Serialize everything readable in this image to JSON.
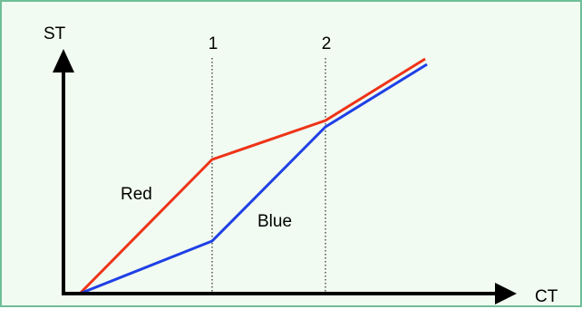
{
  "axes": {
    "y_label": "ST",
    "x_label": "CT"
  },
  "markers": [
    {
      "label": "1"
    },
    {
      "label": "2"
    }
  ],
  "lines": [
    {
      "name": "Red",
      "color": "#ee3318"
    },
    {
      "name": "Blue",
      "color": "#1f3fe6"
    }
  ]
}
